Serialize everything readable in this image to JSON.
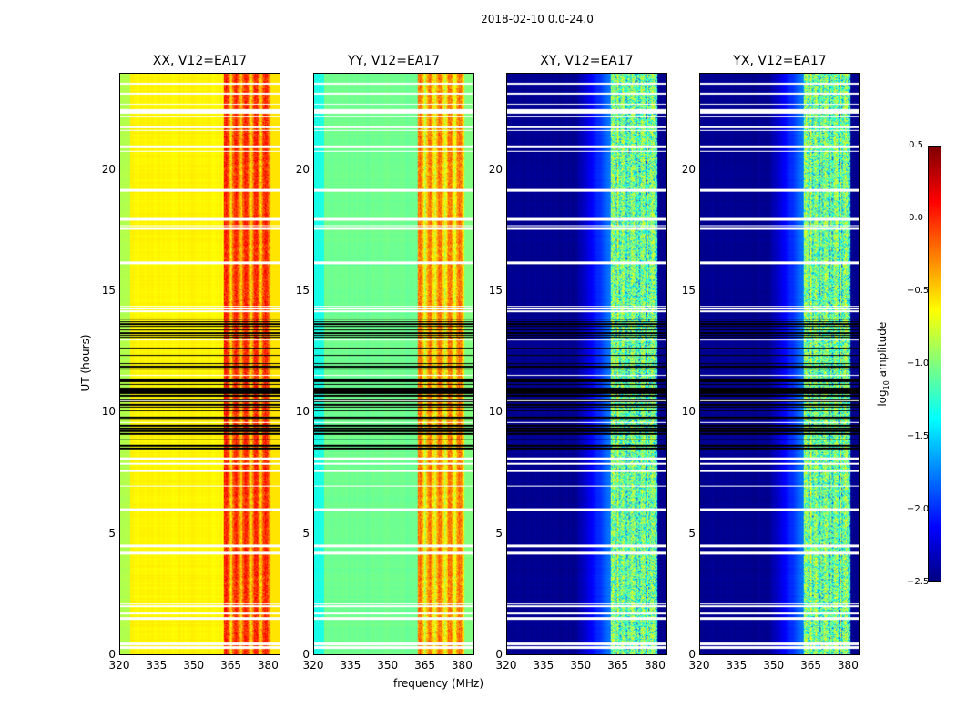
{
  "chart_data": {
    "type": "heatmap",
    "title": "2018-02-10 0.0-24.0",
    "xlabel": "frequency (MHz)",
    "ylabel": "UT (hours)",
    "xlim": [
      320,
      385
    ],
    "ylim": [
      0,
      24
    ],
    "xticks": [
      "320",
      "335",
      "350",
      "365",
      "380"
    ],
    "xtick_values": [
      320,
      335,
      350,
      365,
      380
    ],
    "yticks": [
      "0",
      "5",
      "10",
      "15",
      "20"
    ],
    "ytick_values": [
      0,
      5,
      10,
      15,
      20
    ],
    "colormap": "jet",
    "colorbar": {
      "label": "log10 amplitude",
      "label_main": "log",
      "label_sub": "10",
      "label_rest": " amplitude",
      "range": [
        -2.5,
        0.5
      ],
      "ticks": [
        "0.5",
        "0.0",
        "−0.5",
        "−1.0",
        "−1.5",
        "−2.0",
        "−2.5"
      ],
      "tick_values": [
        0.5,
        0.0,
        -0.5,
        -1.0,
        -1.5,
        -2.0,
        -2.5
      ]
    },
    "panels": [
      {
        "title": "XX, V12=EA17",
        "base_low": -0.6,
        "band": -0.15,
        "band_range": [
          362,
          381
        ]
      },
      {
        "title": "YY, V12=EA17",
        "base_low": -1.05,
        "band": -0.4,
        "band_range": [
          362,
          381
        ]
      },
      {
        "title": "XY, V12=EA17",
        "base_low": -2.45,
        "band": -1.0,
        "band_range": [
          362,
          381
        ]
      },
      {
        "title": "YX, V12=EA17",
        "base_low": -2.45,
        "band": -1.0,
        "band_range": [
          362,
          381
        ]
      }
    ],
    "flagged_white_hours": [
      0.3,
      0.45,
      1.5,
      1.7,
      2.0,
      4.2,
      4.5,
      6.0,
      7.6,
      7.9,
      8.1,
      14.2,
      14.3,
      16.2,
      17.6,
      18.0,
      19.2,
      21.0,
      21.8,
      22.4,
      22.5,
      23.2,
      23.6
    ],
    "black_band_hours": [
      8.4,
      13.9
    ]
  }
}
